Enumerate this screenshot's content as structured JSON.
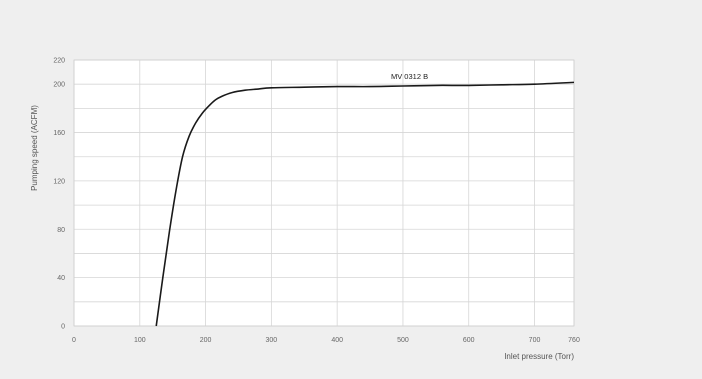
{
  "chart_data": {
    "type": "line",
    "xlabel": "Inlet pressure (Torr)",
    "ylabel": "Pumping speed (ACFM)",
    "xlim": [
      0,
      760
    ],
    "ylim": [
      0,
      220
    ],
    "x_ticks": [
      0,
      100,
      200,
      300,
      400,
      500,
      600,
      700,
      760
    ],
    "y_ticks": [
      0,
      40,
      80,
      120,
      160,
      200,
      220
    ],
    "x_tick_labels": [
      "0",
      "100",
      "200",
      "300",
      "400",
      "500",
      "600",
      "700",
      "760"
    ],
    "y_tick_labels": [
      "0",
      "40",
      "80",
      "120",
      "160",
      "200",
      "220"
    ],
    "grid": true,
    "series": [
      {
        "name": "MV 0312 B",
        "color": "#1a1a1a",
        "x": [
          125,
          135,
          145,
          155,
          165,
          175,
          185,
          195,
          205,
          215,
          225,
          240,
          260,
          280,
          300,
          350,
          400,
          450,
          500,
          550,
          600,
          650,
          700,
          760
        ],
        "y": [
          0,
          40,
          78,
          112,
          140,
          157,
          168,
          176,
          182,
          187,
          190,
          193,
          195,
          196,
          197,
          197.5,
          198,
          198,
          198.5,
          199,
          199,
          199.5,
          200,
          201.5
        ]
      }
    ]
  }
}
